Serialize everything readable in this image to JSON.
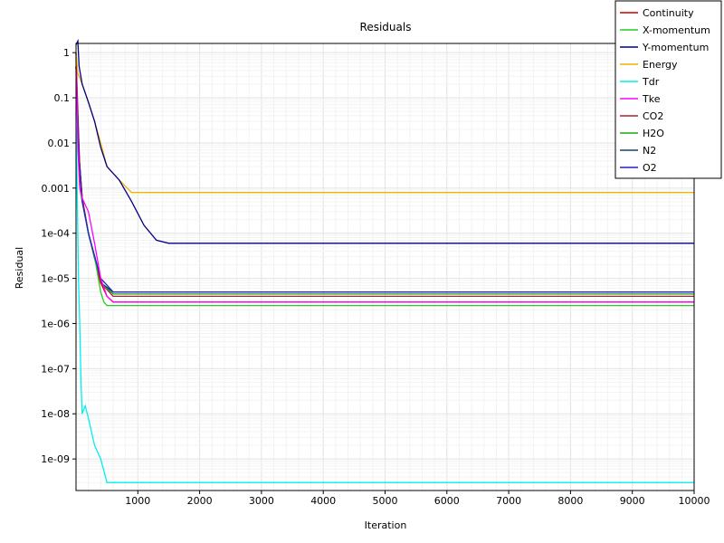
{
  "chart_data": {
    "type": "line",
    "title": "Residuals",
    "xlabel": "Iteration",
    "ylabel": "Residual",
    "xlim": [
      0,
      10000
    ],
    "ylim": [
      2e-10,
      1.6
    ],
    "y_scale": "log",
    "grid": true,
    "legend_position": "top-right",
    "x_ticks": [
      1000,
      2000,
      3000,
      4000,
      5000,
      6000,
      7000,
      8000,
      9000,
      10000
    ],
    "x_tick_labels": [
      "1000",
      "2000",
      "3000",
      "4000",
      "5000",
      "6000",
      "7000",
      "8000",
      "9000",
      "10000"
    ],
    "y_ticks": [
      1,
      0.1,
      0.01,
      0.001,
      0.0001,
      1e-05,
      1e-06,
      1e-07,
      1e-08,
      1e-09
    ],
    "y_tick_labels": [
      "1",
      "0.1",
      "0.01",
      "0.001",
      "1e-04",
      "1e-05",
      "1e-06",
      "1e-07",
      "1e-08",
      "1e-09"
    ],
    "series": [
      {
        "name": "Continuity",
        "color": "#cc0000",
        "x": [
          0,
          30,
          60,
          100,
          200,
          300,
          400,
          500,
          600,
          10000
        ],
        "y": [
          1,
          0.05,
          0.003,
          0.0006,
          0.0001,
          3e-05,
          8e-06,
          4e-06,
          3e-06,
          3e-06
        ]
      },
      {
        "name": "X-momentum",
        "color": "#22cc22",
        "x": [
          0,
          30,
          60,
          100,
          200,
          300,
          400,
          450,
          500,
          10000
        ],
        "y": [
          0.8,
          0.01,
          0.001,
          0.0005,
          0.0001,
          3e-05,
          5e-06,
          3e-06,
          2.5e-06,
          2.5e-06
        ]
      },
      {
        "name": "Y-momentum",
        "color": "#000088",
        "x": [
          0,
          30,
          50,
          100,
          200,
          300,
          400,
          500,
          700,
          900,
          1100,
          1300,
          1500,
          10000
        ],
        "y": [
          1.5,
          1.8,
          0.5,
          0.2,
          0.08,
          0.03,
          0.008,
          0.003,
          0.0015,
          0.0005,
          0.00015,
          7e-05,
          6e-05,
          6e-05
        ]
      },
      {
        "name": "Energy",
        "color": "#f0b400",
        "x": [
          0,
          30,
          100,
          200,
          300,
          400,
          500,
          700,
          900,
          10000
        ],
        "y": [
          1,
          0.35,
          0.2,
          0.08,
          0.03,
          0.01,
          0.003,
          0.0015,
          0.0008,
          0.0008
        ]
      },
      {
        "name": "Tdr",
        "color": "#00eeee",
        "x": [
          0,
          40,
          60,
          80,
          100,
          150,
          200,
          300,
          400,
          500,
          10000
        ],
        "y": [
          0.05,
          1e-05,
          1e-06,
          5e-08,
          1e-08,
          1.5e-08,
          8e-09,
          2e-09,
          1e-09,
          3e-10,
          3e-10
        ]
      },
      {
        "name": "Tke",
        "color": "#ff00ff",
        "x": [
          0,
          30,
          60,
          100,
          200,
          300,
          400,
          500,
          600,
          10000
        ],
        "y": [
          1,
          0.008,
          0.001,
          0.0006,
          0.0003,
          6e-05,
          1e-05,
          4e-06,
          3e-06,
          3e-06
        ]
      },
      {
        "name": "CO2",
        "color": "#aa2222",
        "x": [
          0,
          50,
          100,
          200,
          400,
          600,
          10000
        ],
        "y": [
          0.5,
          0.005,
          0.0006,
          0.0001,
          8e-06,
          4e-06,
          4e-06
        ]
      },
      {
        "name": "H2O",
        "color": "#11aa11",
        "x": [
          0,
          50,
          100,
          200,
          400,
          600,
          10000
        ],
        "y": [
          0.5,
          0.005,
          0.0006,
          0.0001,
          8e-06,
          4.5e-06,
          4.5e-06
        ]
      },
      {
        "name": "N2",
        "color": "#114477",
        "x": [
          0,
          50,
          100,
          200,
          400,
          600,
          10000
        ],
        "y": [
          0.5,
          0.005,
          0.0006,
          0.0001,
          8e-06,
          5e-06,
          5e-06
        ]
      },
      {
        "name": "O2",
        "color": "#2222cc",
        "x": [
          0,
          50,
          100,
          200,
          400,
          600,
          10000
        ],
        "y": [
          0.5,
          0.004,
          0.0005,
          0.0001,
          1e-05,
          5e-06,
          5e-06
        ]
      }
    ]
  }
}
